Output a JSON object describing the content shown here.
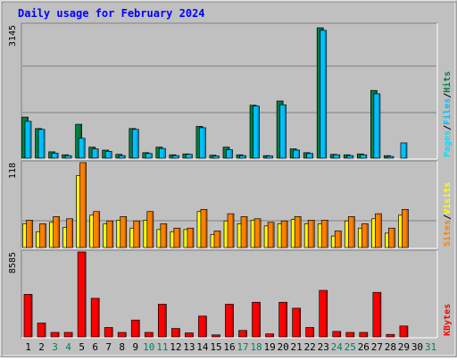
{
  "title": "Daily usage for February 2024",
  "colors": {
    "background": "#c0c0c0",
    "title": "#0000ff",
    "hits": "#008040",
    "files": "#00c0ff",
    "pages": "#00e0ff",
    "visits": "#ffff00",
    "sites": "#ff8000",
    "kbytes": "#ff0000",
    "weekend_day_label": "#00805c",
    "weekday_label": "#000000"
  },
  "chart_data": [
    {
      "type": "bar",
      "name": "hits-files-pages",
      "categories": [
        "1",
        "2",
        "3",
        "4",
        "5",
        "6",
        "7",
        "8",
        "9",
        "10",
        "11",
        "12",
        "13",
        "14",
        "15",
        "16",
        "17",
        "18",
        "19",
        "20",
        "21",
        "22",
        "23",
        "24",
        "25",
        "26",
        "27",
        "28",
        "29",
        "30",
        "31"
      ],
      "ymax_label": "3145",
      "ylim": [
        0,
        3145
      ],
      "legend": [
        "Pages",
        "/",
        "Files",
        "/",
        "Hits"
      ],
      "series": [
        {
          "name": "Hits",
          "values": [
            970,
            700,
            150,
            80,
            800,
            260,
            190,
            90,
            700,
            130,
            260,
            80,
            100,
            750,
            70,
            260,
            80,
            1250,
            60,
            1350,
            220,
            130,
            3080,
            90,
            80,
            100,
            1600,
            60,
            0,
            0,
            0
          ]
        },
        {
          "name": "Files",
          "values": [
            870,
            680,
            120,
            60,
            470,
            220,
            160,
            60,
            680,
            110,
            230,
            60,
            90,
            720,
            50,
            200,
            60,
            1230,
            50,
            1260,
            190,
            110,
            3020,
            80,
            60,
            80,
            1520,
            40,
            360,
            0,
            0
          ]
        },
        {
          "name": "Pages",
          "values": [
            0,
            0,
            0,
            0,
            0,
            0,
            0,
            0,
            0,
            0,
            0,
            0,
            0,
            0,
            0,
            0,
            0,
            0,
            0,
            0,
            0,
            0,
            0,
            0,
            0,
            0,
            0,
            0,
            0,
            0,
            0
          ]
        }
      ]
    },
    {
      "type": "bar",
      "name": "visits-sites",
      "categories": [
        "1",
        "2",
        "3",
        "4",
        "5",
        "6",
        "7",
        "8",
        "9",
        "10",
        "11",
        "12",
        "13",
        "14",
        "15",
        "16",
        "17",
        "18",
        "19",
        "20",
        "21",
        "22",
        "23",
        "24",
        "25",
        "26",
        "27",
        "28",
        "29",
        "30",
        "31"
      ],
      "ymax_label": "118",
      "ylim": [
        0,
        118
      ],
      "legend": [
        "Sites",
        "/",
        "Visits"
      ],
      "series": [
        {
          "name": "Visits",
          "values": [
            33,
            22,
            35,
            28,
            100,
            45,
            33,
            38,
            27,
            38,
            25,
            22,
            25,
            50,
            18,
            37,
            33,
            38,
            30,
            33,
            39,
            33,
            33,
            16,
            37,
            27,
            40,
            20,
            45,
            0,
            0
          ]
        },
        {
          "name": "Sites",
          "values": [
            38,
            33,
            43,
            40,
            118,
            50,
            37,
            43,
            37,
            50,
            33,
            27,
            27,
            53,
            23,
            47,
            43,
            40,
            35,
            37,
            43,
            38,
            38,
            23,
            43,
            33,
            47,
            27,
            53,
            0,
            0
          ]
        }
      ]
    },
    {
      "type": "bar",
      "name": "kbytes",
      "categories": [
        "1",
        "2",
        "3",
        "4",
        "5",
        "6",
        "7",
        "8",
        "9",
        "10",
        "11",
        "12",
        "13",
        "14",
        "15",
        "16",
        "17",
        "18",
        "19",
        "20",
        "21",
        "22",
        "23",
        "24",
        "25",
        "26",
        "27",
        "28",
        "29",
        "30",
        "31"
      ],
      "ymax_label": "8585",
      "ylim": [
        0,
        8585
      ],
      "legend": [
        "KBytes"
      ],
      "series": [
        {
          "name": "KBytes",
          "values": [
            4300,
            1400,
            450,
            450,
            8585,
            3900,
            950,
            450,
            1700,
            450,
            3300,
            850,
            400,
            2100,
            200,
            3300,
            650,
            3500,
            300,
            3500,
            2900,
            950,
            4700,
            550,
            450,
            450,
            4500,
            250,
            1100,
            0,
            0
          ]
        }
      ]
    }
  ],
  "day_labels": [
    "1",
    "2",
    "3",
    "4",
    "5",
    "6",
    "7",
    "8",
    "9",
    "10",
    "11",
    "12",
    "13",
    "14",
    "15",
    "16",
    "17",
    "18",
    "19",
    "20",
    "21",
    "22",
    "23",
    "24",
    "25",
    "26",
    "27",
    "28",
    "29",
    "30",
    "31"
  ],
  "weekend_days": [
    3,
    4,
    10,
    11,
    17,
    18,
    24,
    25,
    31
  ]
}
